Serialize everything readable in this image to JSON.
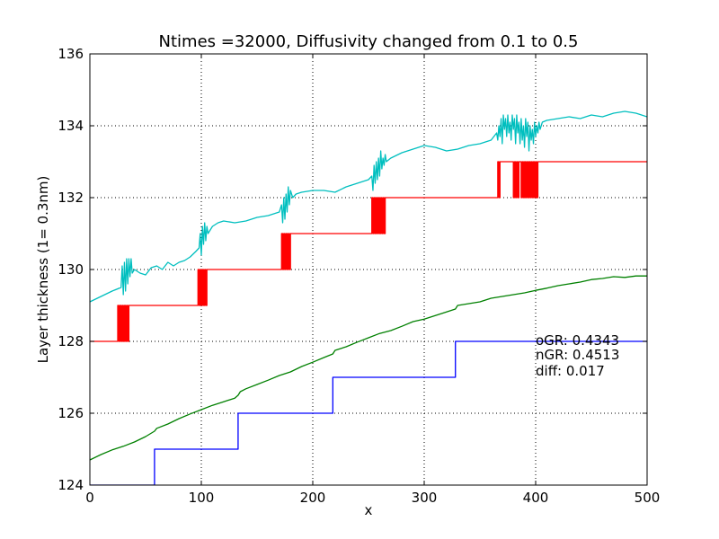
{
  "chart_data": {
    "type": "line",
    "title": "Ntimes =32000, Diffusivity changed from 0.1 to 0.5",
    "xlabel": "x",
    "ylabel": "Layer thickness (1= 0.3nm)",
    "xlim": [
      0,
      500
    ],
    "ylim": [
      124,
      136
    ],
    "xticks": [
      0,
      100,
      200,
      300,
      400,
      500
    ],
    "yticks": [
      124,
      126,
      128,
      130,
      132,
      134,
      136
    ],
    "grid": true,
    "annotations": [
      "oGR: 0.4343",
      "nGR: 0.4513",
      "diff: 0.017"
    ],
    "series": [
      {
        "color": "#00bfbf",
        "style": "line",
        "x": [
          0,
          10,
          20,
          28,
          29,
          30,
          31,
          32,
          33,
          34,
          35,
          36,
          37,
          38,
          40,
          45,
          50,
          55,
          60,
          65,
          70,
          75,
          80,
          85,
          90,
          95,
          98,
          99,
          100,
          101,
          102,
          103,
          104,
          105,
          106,
          108,
          110,
          115,
          120,
          130,
          140,
          150,
          160,
          170,
          172,
          173,
          174,
          175,
          176,
          177,
          178,
          179,
          180,
          182,
          185,
          190,
          200,
          210,
          220,
          230,
          240,
          250,
          253,
          254,
          255,
          256,
          257,
          258,
          259,
          260,
          261,
          262,
          263,
          264,
          265,
          266,
          270,
          280,
          290,
          300,
          310,
          320,
          330,
          340,
          350,
          360,
          365,
          366,
          367,
          368,
          369,
          370,
          371,
          372,
          373,
          374,
          375,
          376,
          377,
          378,
          379,
          380,
          381,
          382,
          383,
          384,
          385,
          386,
          387,
          388,
          389,
          390,
          391,
          392,
          393,
          394,
          395,
          396,
          397,
          398,
          399,
          400,
          401,
          402,
          403,
          404,
          405,
          406,
          410,
          420,
          430,
          440,
          450,
          460,
          470,
          480,
          490,
          500
        ],
        "y": [
          129.1,
          129.25,
          129.4,
          129.5,
          130.1,
          129.3,
          130.2,
          129.4,
          130.3,
          129.6,
          130.3,
          129.8,
          130.3,
          129.9,
          130.0,
          129.9,
          129.85,
          130.05,
          130.1,
          130.0,
          130.2,
          130.1,
          130.2,
          130.25,
          130.35,
          130.5,
          130.6,
          131.0,
          130.4,
          131.2,
          130.7,
          131.3,
          130.8,
          131.2,
          131.0,
          131.1,
          131.2,
          131.3,
          131.35,
          131.3,
          131.35,
          131.45,
          131.5,
          131.6,
          131.8,
          131.3,
          132.0,
          131.4,
          132.1,
          131.6,
          132.3,
          131.8,
          132.2,
          132.0,
          132.1,
          132.15,
          132.2,
          132.2,
          132.15,
          132.3,
          132.4,
          132.5,
          132.6,
          132.2,
          132.9,
          132.4,
          133.0,
          132.5,
          133.1,
          132.6,
          133.3,
          132.8,
          133.1,
          132.9,
          133.2,
          133.0,
          133.1,
          133.25,
          133.35,
          133.45,
          133.4,
          133.3,
          133.35,
          133.45,
          133.5,
          133.6,
          133.8,
          133.6,
          134.0,
          133.7,
          134.2,
          133.5,
          134.3,
          133.9,
          134.2,
          133.7,
          134.3,
          133.8,
          134.1,
          133.6,
          134.3,
          133.9,
          134.2,
          133.5,
          134.3,
          133.8,
          134.1,
          133.5,
          134.2,
          133.6,
          134.0,
          133.4,
          134.2,
          133.7,
          134.1,
          133.3,
          134.0,
          133.6,
          133.9,
          133.5,
          134.1,
          133.7,
          134.0,
          133.8,
          134.1,
          133.9,
          134.0,
          134.1,
          134.15,
          134.2,
          134.25,
          134.2,
          134.3,
          134.25,
          134.35,
          134.4,
          134.35,
          134.25
        ]
      },
      {
        "color": "#ff0000",
        "style": "step",
        "x": [
          0,
          25,
          26,
          27,
          28,
          29,
          30,
          31,
          32,
          33,
          34,
          35,
          97,
          98,
          99,
          100,
          101,
          102,
          103,
          104,
          105,
          172,
          173,
          174,
          175,
          176,
          177,
          178,
          179,
          180,
          253,
          254,
          255,
          256,
          257,
          258,
          259,
          260,
          261,
          262,
          263,
          264,
          265,
          366,
          367,
          368,
          380,
          381,
          382,
          383,
          384,
          385,
          386,
          387,
          388,
          389,
          390,
          391,
          392,
          393,
          394,
          395,
          396,
          397,
          398,
          399,
          400,
          401,
          402,
          500
        ],
        "y": [
          128,
          129,
          128,
          129,
          128,
          129,
          128,
          129,
          128,
          129,
          128,
          129,
          130,
          129,
          130,
          129,
          130,
          129,
          130,
          129,
          130,
          131,
          130,
          131,
          130,
          131,
          130,
          131,
          130,
          131,
          132,
          131,
          132,
          131,
          132,
          131,
          132,
          131,
          132,
          131,
          132,
          131,
          132,
          133,
          132,
          133,
          132,
          133,
          132,
          133,
          132,
          133,
          133,
          132,
          133,
          132,
          133,
          132,
          133,
          132,
          133,
          132,
          133,
          132,
          133,
          132,
          133,
          132,
          133,
          133
        ]
      },
      {
        "color": "#008000",
        "style": "line",
        "x": [
          0,
          10,
          20,
          30,
          40,
          50,
          58,
          60,
          70,
          80,
          90,
          100,
          110,
          120,
          130,
          133,
          135,
          140,
          150,
          160,
          170,
          180,
          190,
          200,
          210,
          218,
          220,
          230,
          240,
          250,
          260,
          270,
          280,
          290,
          300,
          310,
          320,
          328,
          330,
          340,
          350,
          360,
          370,
          380,
          390,
          400,
          410,
          420,
          430,
          440,
          450,
          460,
          470,
          480,
          490,
          500
        ],
        "y": [
          124.7,
          124.85,
          124.98,
          125.08,
          125.2,
          125.35,
          125.5,
          125.58,
          125.7,
          125.85,
          125.98,
          126.1,
          126.22,
          126.32,
          126.42,
          126.5,
          126.6,
          126.68,
          126.8,
          126.92,
          127.05,
          127.15,
          127.3,
          127.42,
          127.55,
          127.65,
          127.75,
          127.85,
          127.98,
          128.1,
          128.22,
          128.3,
          128.42,
          128.55,
          128.62,
          128.72,
          128.82,
          128.9,
          129.0,
          129.05,
          129.1,
          129.2,
          129.25,
          129.3,
          129.35,
          129.42,
          129.48,
          129.55,
          129.6,
          129.65,
          129.72,
          129.75,
          129.8,
          129.78,
          129.82,
          129.82
        ]
      },
      {
        "color": "#0000ff",
        "style": "step",
        "x": [
          0,
          58,
          133,
          218,
          328,
          500
        ],
        "y": [
          124,
          125,
          126,
          127,
          128,
          128
        ]
      }
    ]
  }
}
